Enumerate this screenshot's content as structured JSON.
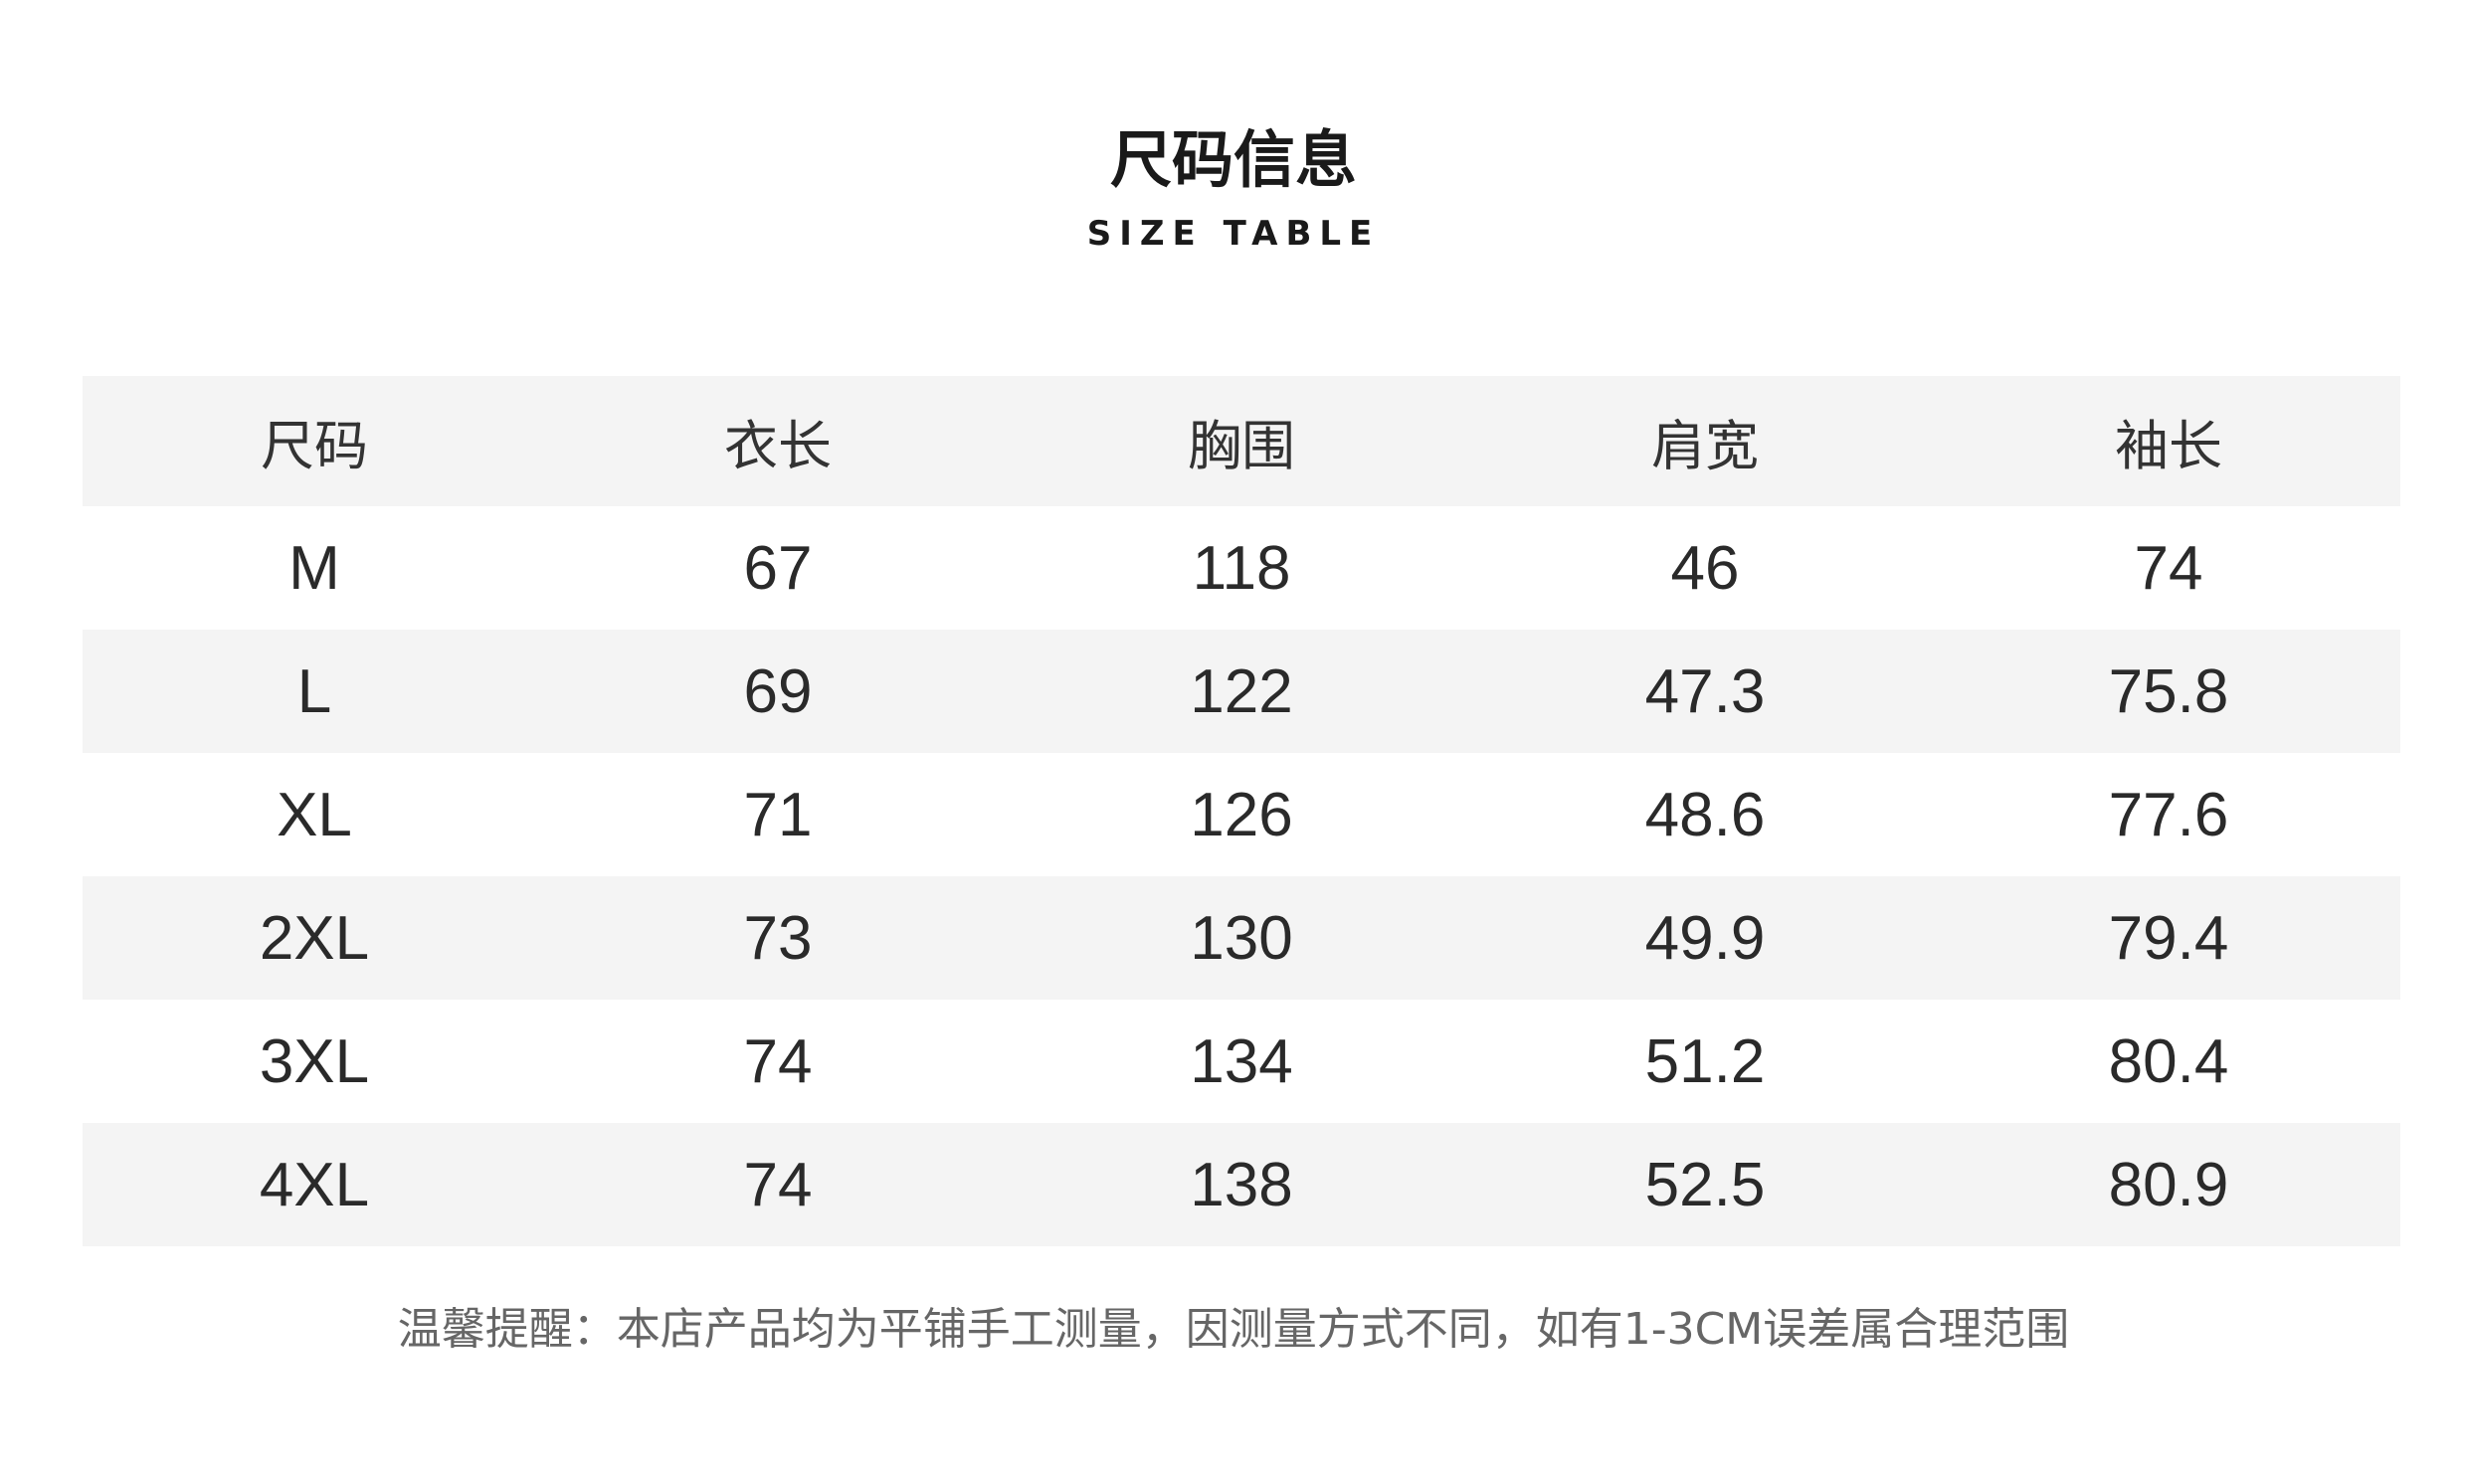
{
  "header": {
    "title": "尺码信息",
    "subtitle": "SIZE TABLE"
  },
  "table": {
    "columns": [
      "尺码",
      "衣长",
      "胸围",
      "肩宽",
      "袖长"
    ],
    "rows": [
      [
        "M",
        "67",
        "118",
        "46",
        "74"
      ],
      [
        "L",
        "69",
        "122",
        "47.3",
        "75.8"
      ],
      [
        "XL",
        "71",
        "126",
        "48.6",
        "77.6"
      ],
      [
        "2XL",
        "73",
        "130",
        "49.9",
        "79.4"
      ],
      [
        "3XL",
        "74",
        "134",
        "51.2",
        "80.4"
      ],
      [
        "4XL",
        "74",
        "138",
        "52.5",
        "80.9"
      ]
    ],
    "stripe_color": "#f4f4f4"
  },
  "footer": {
    "note": "温馨提醒：本店产品均为平铺手工测量，因测量方式不同，如有1-3CM误差属合理范围"
  }
}
